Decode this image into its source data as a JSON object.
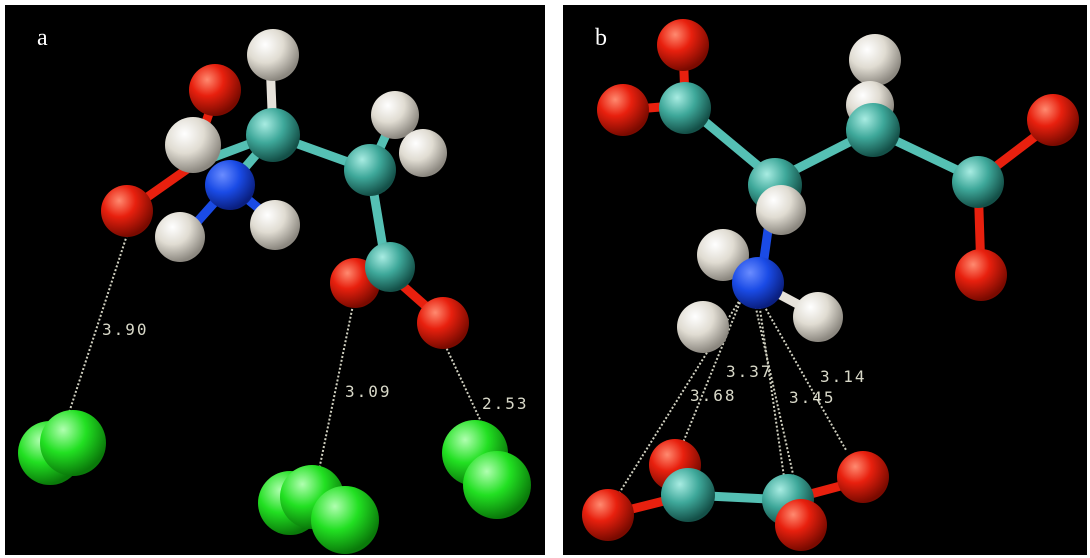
{
  "panels": [
    {
      "label": "a",
      "distances": [
        "3.90",
        "3.09",
        "2.53"
      ]
    },
    {
      "label": "b",
      "distances": [
        "3.37",
        "3.68",
        "3.14",
        "3.45"
      ]
    }
  ],
  "colors": {
    "background": "#000000",
    "oxygen": "#e8200e",
    "hydrogen": "#e6e2da",
    "nitrogen": "#1a4be6",
    "carbon": "#3ea89a",
    "chloride": "#2ed92e",
    "bond": "#55c0b4",
    "distance_line": "#d0d0c0"
  }
}
